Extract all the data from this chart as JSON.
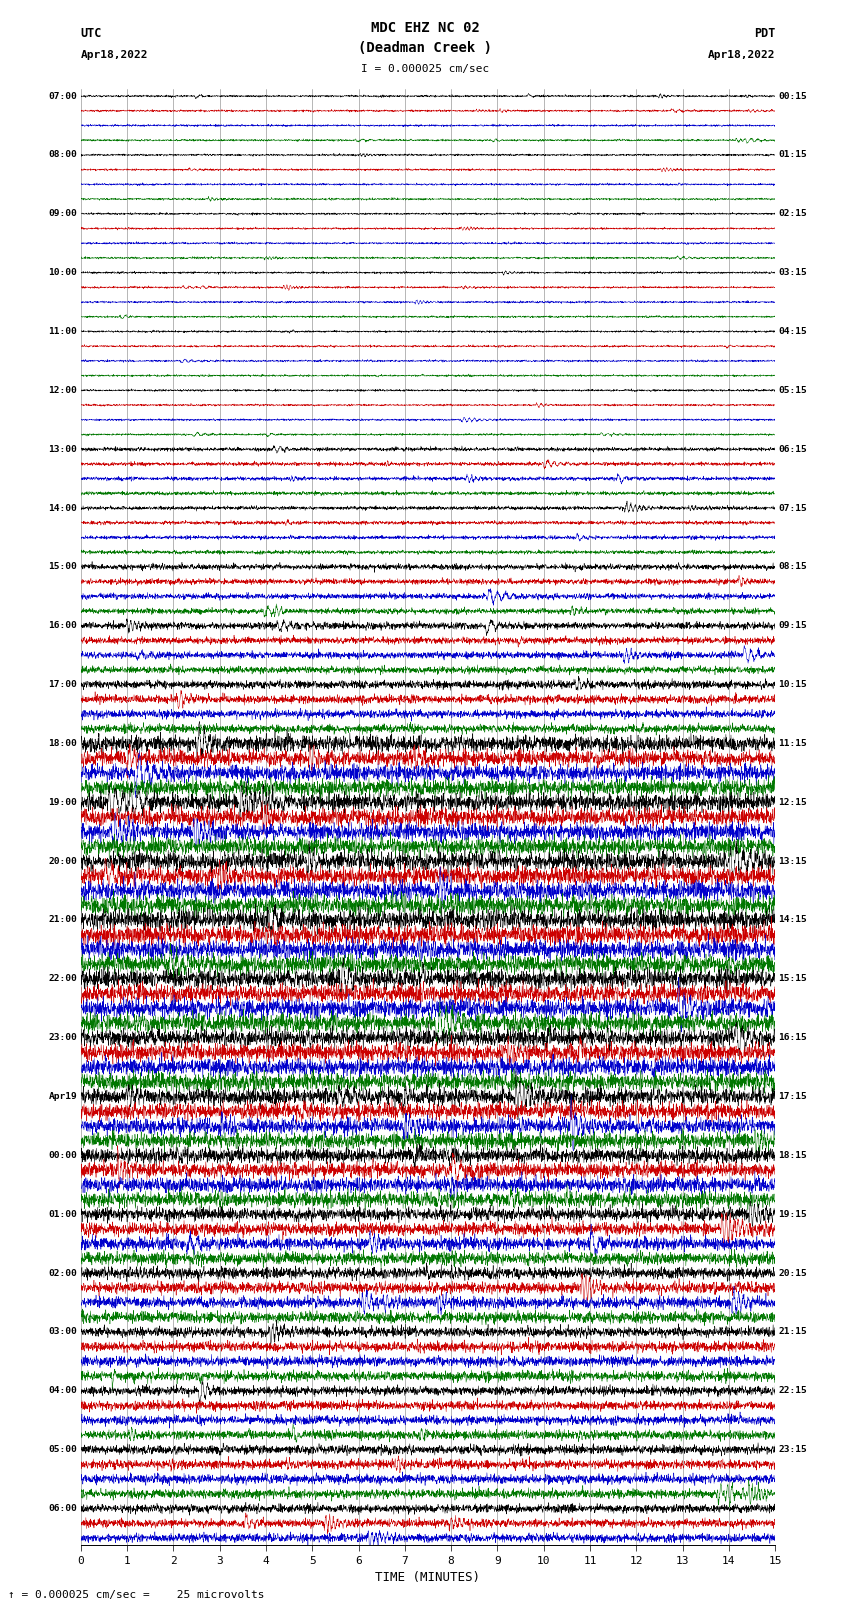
{
  "title_line1": "MDC EHZ NC 02",
  "title_line2": "(Deadman Creek )",
  "scale_text": "I = 0.000025 cm/sec",
  "utc_label": "UTC",
  "utc_date": "Apr18,2022",
  "pdt_label": "PDT",
  "pdt_date": "Apr18,2022",
  "xlabel": "TIME (MINUTES)",
  "footer_text": "= 0.000025 cm/sec =    25 microvolts",
  "xmin": 0,
  "xmax": 15,
  "trace_colors_hex": [
    "#000000",
    "#cc0000",
    "#0000cc",
    "#007700"
  ],
  "bg_color": "#ffffff",
  "figwidth": 8.5,
  "figheight": 16.13,
  "dpi": 100,
  "utc_times": [
    "07:00",
    "",
    "",
    "",
    "08:00",
    "",
    "",
    "",
    "09:00",
    "",
    "",
    "",
    "10:00",
    "",
    "",
    "",
    "11:00",
    "",
    "",
    "",
    "12:00",
    "",
    "",
    "",
    "13:00",
    "",
    "",
    "",
    "14:00",
    "",
    "",
    "",
    "15:00",
    "",
    "",
    "",
    "16:00",
    "",
    "",
    "",
    "17:00",
    "",
    "",
    "",
    "18:00",
    "",
    "",
    "",
    "19:00",
    "",
    "",
    "",
    "20:00",
    "",
    "",
    "",
    "21:00",
    "",
    "",
    "",
    "22:00",
    "",
    "",
    "",
    "23:00",
    "",
    "",
    "",
    "Apr19",
    "",
    "",
    "",
    "00:00",
    "",
    "",
    "",
    "01:00",
    "",
    "",
    "",
    "02:00",
    "",
    "",
    "",
    "03:00",
    "",
    "",
    "",
    "04:00",
    "",
    "",
    "",
    "05:00",
    "",
    "",
    "",
    "06:00",
    "",
    ""
  ],
  "pdt_times": [
    "00:15",
    "",
    "",
    "",
    "01:15",
    "",
    "",
    "",
    "02:15",
    "",
    "",
    "",
    "03:15",
    "",
    "",
    "",
    "04:15",
    "",
    "",
    "",
    "05:15",
    "",
    "",
    "",
    "06:15",
    "",
    "",
    "",
    "07:15",
    "",
    "",
    "",
    "08:15",
    "",
    "",
    "",
    "09:15",
    "",
    "",
    "",
    "10:15",
    "",
    "",
    "",
    "11:15",
    "",
    "",
    "",
    "12:15",
    "",
    "",
    "",
    "13:15",
    "",
    "",
    "",
    "14:15",
    "",
    "",
    "",
    "15:15",
    "",
    "",
    "",
    "16:15",
    "",
    "",
    "",
    "17:15",
    "",
    "",
    "",
    "18:15",
    "",
    "",
    "",
    "19:15",
    "",
    "",
    "",
    "20:15",
    "",
    "",
    "",
    "21:15",
    "",
    "",
    "",
    "22:15",
    "",
    "",
    "",
    "23:15",
    "",
    "",
    "",
    "",
    "",
    ""
  ],
  "amp_profile": [
    0.06,
    0.06,
    0.06,
    0.06,
    0.06,
    0.06,
    0.06,
    0.06,
    0.06,
    0.06,
    0.06,
    0.06,
    0.06,
    0.06,
    0.06,
    0.06,
    0.06,
    0.06,
    0.06,
    0.06,
    0.06,
    0.06,
    0.06,
    0.06,
    0.08,
    0.08,
    0.08,
    0.08,
    0.08,
    0.08,
    0.08,
    0.08,
    0.12,
    0.12,
    0.12,
    0.12,
    0.15,
    0.15,
    0.15,
    0.15,
    0.18,
    0.18,
    0.18,
    0.18,
    0.35,
    0.35,
    0.35,
    0.35,
    0.38,
    0.38,
    0.38,
    0.38,
    0.4,
    0.4,
    0.4,
    0.4,
    0.42,
    0.42,
    0.42,
    0.42,
    0.4,
    0.4,
    0.4,
    0.4,
    0.38,
    0.38,
    0.38,
    0.38,
    0.35,
    0.35,
    0.35,
    0.35,
    0.33,
    0.33,
    0.33,
    0.33,
    0.28,
    0.28,
    0.28,
    0.28,
    0.25,
    0.25,
    0.25,
    0.25,
    0.22,
    0.22,
    0.22,
    0.22,
    0.2,
    0.2,
    0.2,
    0.2,
    0.2,
    0.2,
    0.2,
    0.2,
    0.18,
    0.18,
    0.18
  ]
}
